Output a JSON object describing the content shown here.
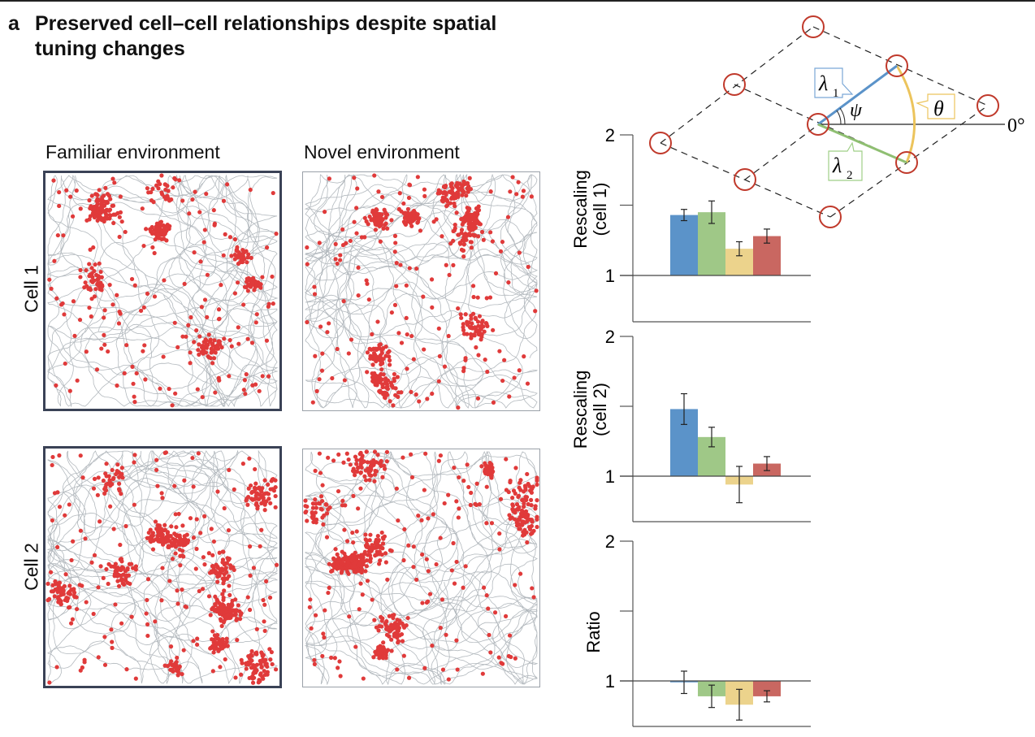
{
  "figure": {
    "panel_letter": "a",
    "title": "Preserved cell–cell relationships despite spatial tuning changes",
    "columns": [
      "Familiar environment",
      "Novel environment"
    ],
    "rows": [
      "Cell 1",
      "Cell 2"
    ]
  },
  "diagram": {
    "lambda1": "λ",
    "lambda1_sub": "1",
    "lambda2": "λ",
    "lambda2_sub": "2",
    "psi": "ψ",
    "theta": "θ",
    "zero_deg": "0°"
  },
  "colors": {
    "lambda1": "#5b93c9",
    "lambda2": "#9fc887",
    "theta": "#ecd38c",
    "psi": "#c96761",
    "spike": "#e03a3a",
    "trajectory": "#9aa1a8",
    "node": "#c0392b"
  },
  "chart_data": [
    {
      "type": "bar",
      "ylabel": "Rescaling (cell 1)",
      "ylabel_lines": [
        "Rescaling",
        "(cell 1)"
      ],
      "categories": [
        "λ1",
        "λ2",
        "θ",
        "ψ"
      ],
      "values": [
        1.43,
        1.45,
        1.19,
        1.28
      ],
      "errors": [
        0.04,
        0.08,
        0.05,
        0.05
      ],
      "baseline": 1,
      "ylim": [
        0.55,
        2
      ],
      "yticks": [
        1,
        1.5,
        2
      ],
      "ytick_labels": [
        "1",
        "",
        "2"
      ]
    },
    {
      "type": "bar",
      "ylabel": "Rescaling (cell 2)",
      "ylabel_lines": [
        "Rescaling",
        "(cell 2)"
      ],
      "categories": [
        "λ1",
        "λ2",
        "θ",
        "ψ"
      ],
      "values": [
        1.48,
        1.28,
        0.94,
        1.09
      ],
      "errors": [
        0.11,
        0.07,
        0.13,
        0.05
      ],
      "baseline": 1,
      "ylim": [
        0.68,
        2
      ],
      "yticks": [
        1,
        1.5,
        2
      ],
      "ytick_labels": [
        "1",
        "",
        "2"
      ]
    },
    {
      "type": "bar",
      "ylabel": "Ratio",
      "ylabel_lines": [
        "Ratio"
      ],
      "categories": [
        "λ1",
        "λ2",
        "θ",
        "ψ"
      ],
      "values": [
        0.99,
        0.89,
        0.83,
        0.89
      ],
      "errors": [
        0.08,
        0.08,
        0.11,
        0.04
      ],
      "baseline": 1,
      "ylim": [
        0.68,
        2
      ],
      "yticks": [
        1,
        1.5,
        2
      ],
      "ytick_labels": [
        "1",
        "",
        "2"
      ]
    }
  ]
}
